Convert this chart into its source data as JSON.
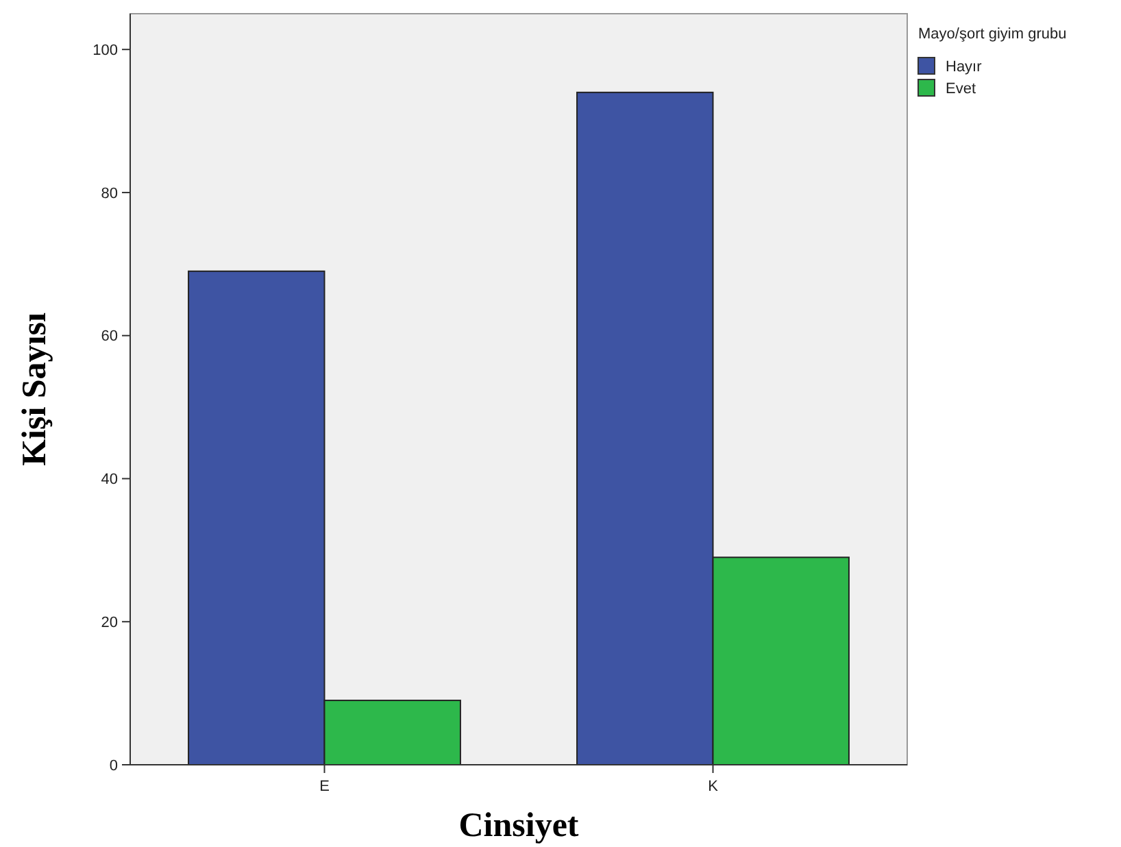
{
  "chart_data": {
    "type": "bar",
    "xlabel": "Cinsiyet",
    "ylabel": "Kişi Sayısı",
    "legend_title": "Mayo/şort giyim grubu",
    "categories": [
      "E",
      "K"
    ],
    "series": [
      {
        "name": "Hayır",
        "color": "#3e54a3",
        "values": [
          69,
          94
        ]
      },
      {
        "name": "Evet",
        "color": "#2db84b",
        "values": [
          9,
          29
        ]
      }
    ],
    "ylim": [
      0,
      105
    ],
    "yticks": [
      0,
      20,
      40,
      60,
      80,
      100
    ],
    "legend": "top right",
    "grid": false
  }
}
